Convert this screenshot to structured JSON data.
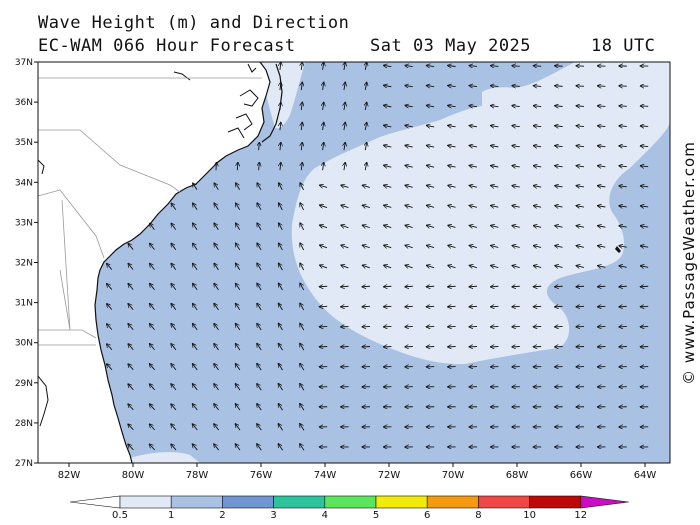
{
  "header": {
    "title": "Wave Height (m) and Direction",
    "model_line": "EC-WAM 066 Hour Forecast",
    "date": "Sat 03 May 2025",
    "time": "18 UTC"
  },
  "watermark": "© www.PassageWeather.com",
  "map": {
    "lat_labels": [
      "37N",
      "36N",
      "35N",
      "34N",
      "33N",
      "32N",
      "31N",
      "30N",
      "29N",
      "28N",
      "27N"
    ],
    "lon_labels": [
      "82W",
      "80W",
      "78W",
      "76W",
      "74W",
      "72W",
      "70W",
      "68W",
      "66W",
      "64W"
    ],
    "colors": {
      "land": "#ffffff",
      "band_0_5_1": "#e1e9f6",
      "band_1_2": "#a9c1e3",
      "coast": "#111111",
      "border": "#999999"
    },
    "wave_pattern": "waves mostly 1-2 m; calmer 0.5-1 m area offshore east of the Carolinas",
    "arrow_direction_summary": "waves moving toward the northwest near the coast and toward the west offshore"
  },
  "legend": {
    "tick_labels": [
      "0.5",
      "1",
      "2",
      "3",
      "4",
      "5",
      "6",
      "8",
      "10",
      "12"
    ],
    "colors": [
      "#e1e9f6",
      "#a9c1e3",
      "#6f96d3",
      "#2cc39d",
      "#5ae55a",
      "#f2ea08",
      "#f59a10",
      "#ed4846",
      "#be0808",
      "#c80dc4"
    ]
  }
}
